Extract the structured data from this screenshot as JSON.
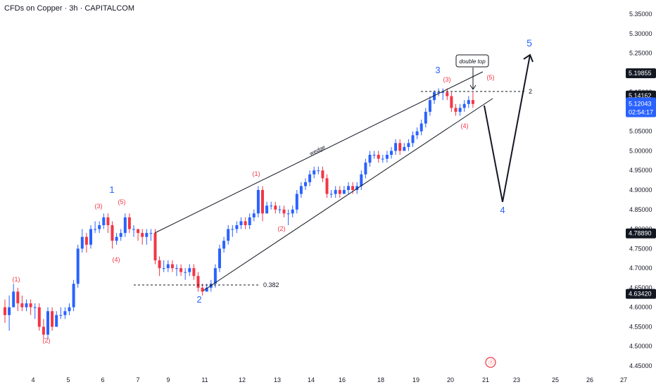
{
  "header": {
    "title": "CFDs on Copper · 3h · CAPITALCOM"
  },
  "colors": {
    "up": "#2962ff",
    "down": "#f23645",
    "wave_blue": "#2962ff",
    "wave_red": "#f23645",
    "line": "#131722",
    "axis_text": "#131722",
    "current_price_bg": "#2962ff"
  },
  "chart_data": {
    "type": "candlestick",
    "title": "CFDs on Copper · 3h · CAPITALCOM",
    "y_ticks": [
      "5.35000",
      "5.30000",
      "5.25000",
      "5.20000",
      "5.15000",
      "5.10000",
      "5.05000",
      "5.00000",
      "4.95000",
      "4.90000",
      "4.85000",
      "4.80000",
      "4.75000",
      "4.70000",
      "4.65000",
      "4.60000",
      "4.55000",
      "4.50000",
      "4.45000"
    ],
    "ylim": [
      4.44,
      5.365
    ],
    "x_ticks": [
      "4",
      "5",
      "6",
      "7",
      "9",
      "11",
      "12",
      "13",
      "14",
      "16",
      "18",
      "19",
      "20",
      "21",
      "23",
      "25",
      "26",
      "27"
    ],
    "price_labels": [
      {
        "value": 5.19855,
        "text": "5.19855",
        "style": "dark"
      },
      {
        "value": 5.14162,
        "text": "5.14162",
        "style": "dark"
      },
      {
        "value": 5.12043,
        "text": "5.12043",
        "style": "current",
        "countdown": "02:54:17"
      },
      {
        "value": 4.7889,
        "text": "4.78890",
        "style": "dark"
      },
      {
        "value": 4.6342,
        "text": "4.63420",
        "style": "dark"
      }
    ],
    "candles": [
      [
        4.6,
        4.58,
        4.62,
        4.56
      ],
      [
        4.58,
        4.6,
        4.63,
        4.54
      ],
      [
        4.6,
        4.64,
        4.66,
        4.6
      ],
      [
        4.64,
        4.61,
        4.65,
        4.59
      ],
      [
        4.61,
        4.6,
        4.63,
        4.59
      ],
      [
        4.6,
        4.61,
        4.62,
        4.59
      ],
      [
        4.61,
        4.6,
        4.62,
        4.58
      ],
      [
        4.6,
        4.6,
        4.61,
        4.57
      ],
      [
        4.6,
        4.55,
        4.61,
        4.54
      ],
      [
        4.55,
        4.53,
        4.57,
        4.52
      ],
      [
        4.53,
        4.59,
        4.6,
        4.52
      ],
      [
        4.59,
        4.55,
        4.6,
        4.54
      ],
      [
        4.55,
        4.58,
        4.59,
        4.55
      ],
      [
        4.58,
        4.58,
        4.6,
        4.57
      ],
      [
        4.58,
        4.59,
        4.6,
        4.57
      ],
      [
        4.59,
        4.6,
        4.61,
        4.58
      ],
      [
        4.6,
        4.66,
        4.67,
        4.59
      ],
      [
        4.66,
        4.75,
        4.76,
        4.65
      ],
      [
        4.75,
        4.78,
        4.8,
        4.74
      ],
      [
        4.78,
        4.76,
        4.79,
        4.74
      ],
      [
        4.76,
        4.8,
        4.81,
        4.75
      ],
      [
        4.8,
        4.8,
        4.82,
        4.79
      ],
      [
        4.8,
        4.81,
        4.82,
        4.79
      ],
      [
        4.81,
        4.83,
        4.84,
        4.8
      ],
      [
        4.83,
        4.81,
        4.84,
        4.79
      ],
      [
        4.81,
        4.77,
        4.82,
        4.75
      ],
      [
        4.77,
        4.78,
        4.79,
        4.76
      ],
      [
        4.78,
        4.79,
        4.8,
        4.77
      ],
      [
        4.79,
        4.83,
        4.84,
        4.78
      ],
      [
        4.83,
        4.8,
        4.84,
        4.79
      ],
      [
        4.8,
        4.8,
        4.81,
        4.78
      ],
      [
        4.8,
        4.79,
        4.8,
        4.77
      ],
      [
        4.79,
        4.78,
        4.8,
        4.76
      ],
      [
        4.78,
        4.79,
        4.8,
        4.76
      ],
      [
        4.79,
        4.79,
        4.8,
        4.77
      ],
      [
        4.79,
        4.72,
        4.8,
        4.71
      ],
      [
        4.72,
        4.7,
        4.73,
        4.68
      ],
      [
        4.7,
        4.7,
        4.72,
        4.69
      ],
      [
        4.7,
        4.71,
        4.72,
        4.69
      ],
      [
        4.71,
        4.7,
        4.72,
        4.69
      ],
      [
        4.7,
        4.7,
        4.71,
        4.68
      ],
      [
        4.7,
        4.69,
        4.71,
        4.68
      ],
      [
        4.69,
        4.69,
        4.7,
        4.67
      ],
      [
        4.69,
        4.7,
        4.71,
        4.68
      ],
      [
        4.7,
        4.68,
        4.71,
        4.67
      ],
      [
        4.68,
        4.65,
        4.69,
        4.64
      ],
      [
        4.65,
        4.64,
        4.66,
        4.63
      ],
      [
        4.64,
        4.65,
        4.66,
        4.64
      ],
      [
        4.65,
        4.66,
        4.67,
        4.64
      ],
      [
        4.66,
        4.7,
        4.71,
        4.65
      ],
      [
        4.7,
        4.75,
        4.76,
        4.69
      ],
      [
        4.75,
        4.77,
        4.78,
        4.74
      ],
      [
        4.77,
        4.8,
        4.81,
        4.76
      ],
      [
        4.8,
        4.8,
        4.81,
        4.78
      ],
      [
        4.8,
        4.81,
        4.82,
        4.79
      ],
      [
        4.81,
        4.82,
        4.83,
        4.8
      ],
      [
        4.82,
        4.81,
        4.83,
        4.8
      ],
      [
        4.81,
        4.83,
        4.84,
        4.8
      ],
      [
        4.83,
        4.84,
        4.85,
        4.82
      ],
      [
        4.84,
        4.9,
        4.91,
        4.83
      ],
      [
        4.9,
        4.84,
        4.91,
        4.82
      ],
      [
        4.84,
        4.86,
        4.87,
        4.84
      ],
      [
        4.86,
        4.86,
        4.87,
        4.85
      ],
      [
        4.86,
        4.85,
        4.87,
        4.84
      ],
      [
        4.85,
        4.85,
        4.86,
        4.84
      ],
      [
        4.85,
        4.84,
        4.86,
        4.83
      ],
      [
        4.84,
        4.84,
        4.85,
        4.81
      ],
      [
        4.84,
        4.85,
        4.86,
        4.83
      ],
      [
        4.85,
        4.89,
        4.9,
        4.84
      ],
      [
        4.89,
        4.91,
        4.92,
        4.88
      ],
      [
        4.91,
        4.92,
        4.93,
        4.9
      ],
      [
        4.92,
        4.94,
        4.95,
        4.91
      ],
      [
        4.94,
        4.95,
        4.96,
        4.93
      ],
      [
        4.95,
        4.95,
        4.96,
        4.94
      ],
      [
        4.95,
        4.93,
        4.96,
        4.92
      ],
      [
        4.93,
        4.89,
        4.94,
        4.88
      ],
      [
        4.89,
        4.89,
        4.9,
        4.88
      ],
      [
        4.89,
        4.9,
        4.91,
        4.88
      ],
      [
        4.9,
        4.89,
        4.91,
        4.88
      ],
      [
        4.89,
        4.9,
        4.91,
        4.89
      ],
      [
        4.9,
        4.91,
        4.92,
        4.89
      ],
      [
        4.91,
        4.9,
        4.92,
        4.89
      ],
      [
        4.9,
        4.91,
        4.92,
        4.89
      ],
      [
        4.91,
        4.94,
        4.95,
        4.9
      ],
      [
        4.94,
        4.97,
        4.98,
        4.93
      ],
      [
        4.97,
        4.99,
        5.0,
        4.96
      ],
      [
        4.99,
        4.99,
        5.0,
        4.98
      ],
      [
        4.99,
        4.98,
        5.0,
        4.97
      ],
      [
        4.98,
        4.98,
        4.99,
        4.97
      ],
      [
        4.98,
        4.99,
        5.0,
        4.97
      ],
      [
        4.99,
        5.0,
        5.01,
        4.98
      ],
      [
        5.0,
        5.02,
        5.03,
        4.99
      ],
      [
        5.02,
        5.0,
        5.03,
        4.99
      ],
      [
        5.0,
        5.01,
        5.02,
        5.0
      ],
      [
        5.01,
        5.02,
        5.03,
        5.0
      ],
      [
        5.02,
        5.04,
        5.05,
        5.01
      ],
      [
        5.04,
        5.05,
        5.06,
        5.03
      ],
      [
        5.05,
        5.07,
        5.08,
        5.04
      ],
      [
        5.07,
        5.1,
        5.11,
        5.06
      ],
      [
        5.1,
        5.13,
        5.14,
        5.09
      ],
      [
        5.13,
        5.15,
        5.155,
        5.12
      ],
      [
        5.15,
        5.15,
        5.16,
        5.14
      ],
      [
        5.15,
        5.15,
        5.16,
        5.13
      ],
      [
        5.15,
        5.14,
        5.16,
        5.13
      ],
      [
        5.14,
        5.11,
        5.15,
        5.1
      ],
      [
        5.11,
        5.1,
        5.12,
        5.09
      ],
      [
        5.1,
        5.11,
        5.12,
        5.09
      ],
      [
        5.11,
        5.12,
        5.13,
        5.1
      ],
      [
        5.12,
        5.13,
        5.14,
        5.11
      ],
      [
        5.13,
        5.12,
        5.15,
        5.11
      ]
    ],
    "annotations": [
      {
        "text": "double top",
        "kind": "callout"
      },
      {
        "text": "wedge",
        "kind": "label"
      },
      {
        "text": "0.382",
        "kind": "fib"
      },
      {
        "text": "2",
        "kind": "level"
      }
    ],
    "wave_labels": {
      "blue": [
        "1",
        "2",
        "3",
        "4",
        "5"
      ],
      "red": [
        "(1)",
        "(2)",
        "(3)",
        "(4)",
        "(5)",
        "(1)",
        "(2)",
        "(3)",
        "(4)",
        "(5)"
      ]
    }
  }
}
